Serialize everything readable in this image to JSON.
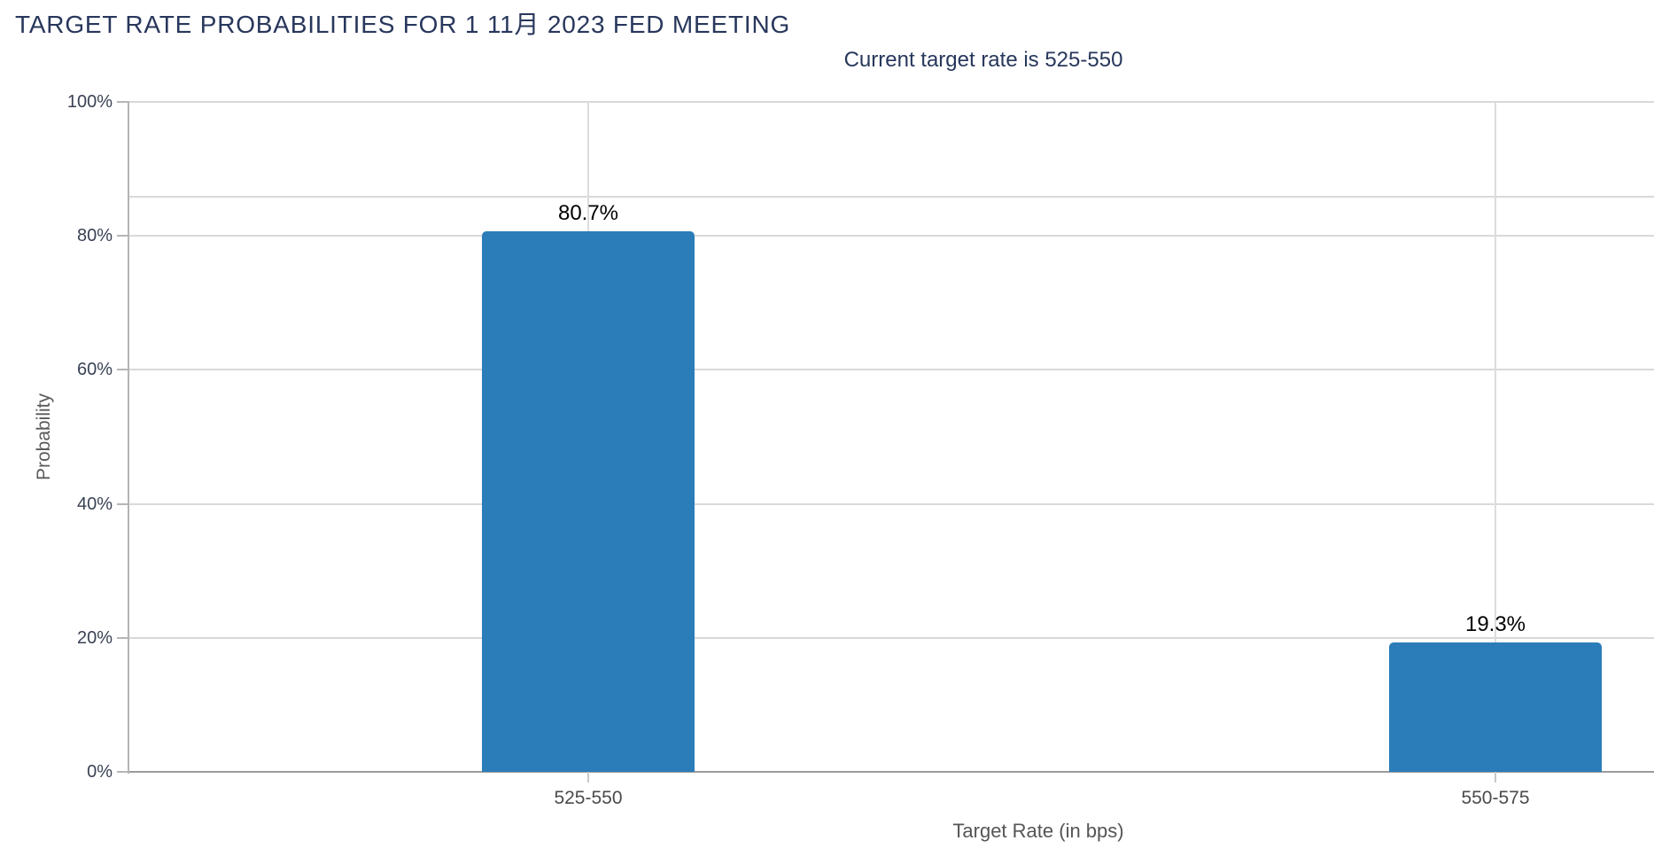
{
  "page": {
    "app": "fedwatch-target-rate-probabilities"
  },
  "chart_data": {
    "type": "bar",
    "title": "TARGET RATE PROBABILITIES FOR 1 11月 2023 FED MEETING",
    "subtitle": "Current target rate is 525-550",
    "current_target_rate": "525-550",
    "categories": [
      "525-550",
      "550-575"
    ],
    "values": [
      80.7,
      19.3
    ],
    "bar_labels": [
      "80.7%",
      "19.3%"
    ],
    "xlabel": "Target Rate (in bps)",
    "ylabel": "Probability",
    "ylim": [
      0,
      100
    ],
    "y_ticks": [
      0,
      20,
      40,
      60,
      80,
      100
    ],
    "y_tick_labels": [
      "0%",
      "20%",
      "40%",
      "60%",
      "80%",
      "100%"
    ],
    "grid": true,
    "legend": false,
    "bar_color": "#2a7db8",
    "title_color": "#28375c",
    "gridline_color": "#d9d9d9"
  }
}
